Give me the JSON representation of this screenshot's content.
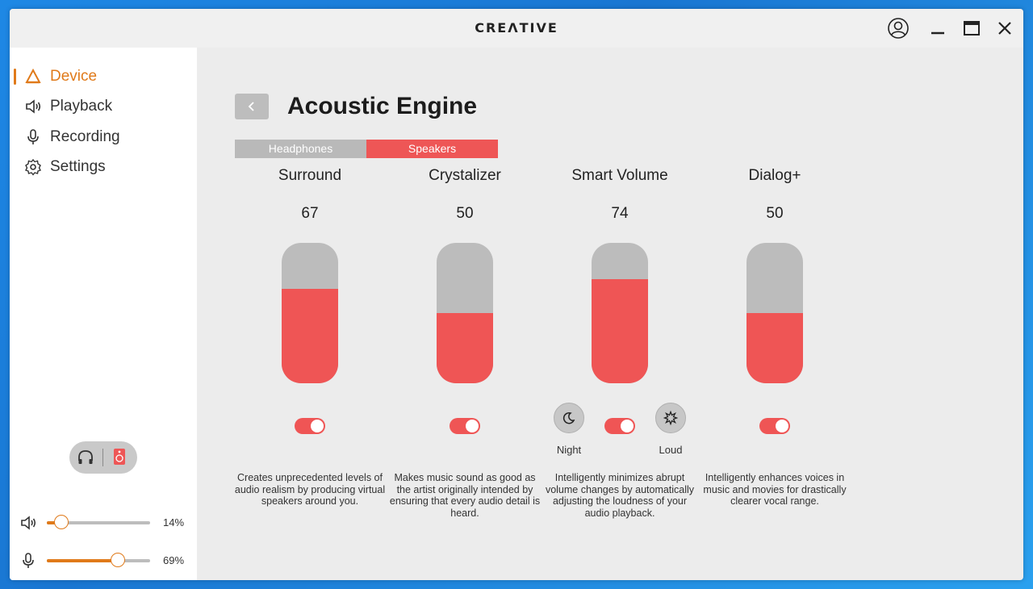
{
  "app": {
    "brand": "CREΛTIVE"
  },
  "sidebar": {
    "items": [
      {
        "label": "Device",
        "icon": "device-icon",
        "active": true
      },
      {
        "label": "Playback",
        "icon": "speaker-icon",
        "active": false
      },
      {
        "label": "Recording",
        "icon": "microphone-icon",
        "active": false
      },
      {
        "label": "Settings",
        "icon": "gear-icon",
        "active": false
      }
    ],
    "volume": {
      "percent_label": "14%",
      "value": 14
    },
    "mic": {
      "percent_label": "69%",
      "value": 69
    }
  },
  "main": {
    "title": "Acoustic Engine",
    "tabs": [
      {
        "label": "Headphones",
        "selected": false
      },
      {
        "label": "Speakers",
        "selected": true
      }
    ],
    "effects": [
      {
        "name": "Surround",
        "value": "67",
        "level": 67,
        "enabled": true,
        "description": "Creates unprecedented levels of audio realism by producing virtual speakers around you."
      },
      {
        "name": "Crystalizer",
        "value": "50",
        "level": 50,
        "enabled": true,
        "description": "Makes music sound as good as the artist originally intended by ensuring that every audio detail is heard."
      },
      {
        "name": "Smart Volume",
        "value": "74",
        "level": 74,
        "enabled": true,
        "description": "Intelligently minimizes abrupt volume changes by automatically adjusting the loudness of your audio playback.",
        "modes": [
          "Night",
          "Loud"
        ]
      },
      {
        "name": "Dialog+",
        "value": "50",
        "level": 50,
        "enabled": true,
        "description": "Intelligently enhances voices in music and movies for drastically clearer vocal range."
      }
    ]
  },
  "colors": {
    "accent": "#e07a1a",
    "active_red": "#ee5656",
    "inactive_gray": "#b9b9b9"
  }
}
